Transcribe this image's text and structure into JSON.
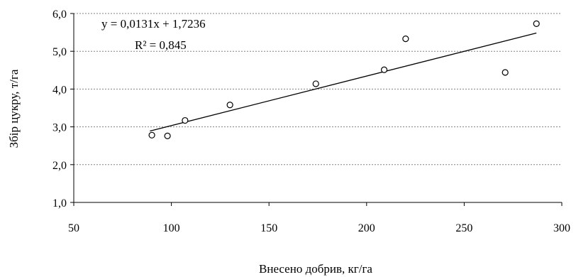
{
  "chart_data": {
    "type": "scatter",
    "title": "",
    "xlabel": "Внесено добрив, кг/га",
    "ylabel": "Збір цукру, т/га",
    "xlim": [
      50,
      300
    ],
    "ylim": [
      1.0,
      6.0
    ],
    "x_ticks": [
      50,
      100,
      150,
      200,
      250,
      300
    ],
    "x_tick_labels": [
      "50",
      "100",
      "150",
      "200",
      "250",
      "300"
    ],
    "y_ticks": [
      1.0,
      2.0,
      3.0,
      4.0,
      5.0,
      6.0
    ],
    "y_tick_labels": [
      "1,0",
      "2,0",
      "3,0",
      "4,0",
      "5,0",
      "6,0"
    ],
    "grid": "horizontal-dotted",
    "points": [
      {
        "x": 90,
        "y": 2.78
      },
      {
        "x": 98,
        "y": 2.76
      },
      {
        "x": 107,
        "y": 3.17
      },
      {
        "x": 130,
        "y": 3.58
      },
      {
        "x": 174,
        "y": 4.14
      },
      {
        "x": 209,
        "y": 4.51
      },
      {
        "x": 220,
        "y": 5.33
      },
      {
        "x": 271,
        "y": 4.44
      },
      {
        "x": 287,
        "y": 5.73
      }
    ],
    "trendline": {
      "type": "linear",
      "slope": 0.0131,
      "intercept": 1.7236,
      "x_range": [
        89,
        287
      ],
      "equation_label": "y = 0,0131x + 1,7236",
      "r2_label": "R² = 0,845"
    }
  }
}
